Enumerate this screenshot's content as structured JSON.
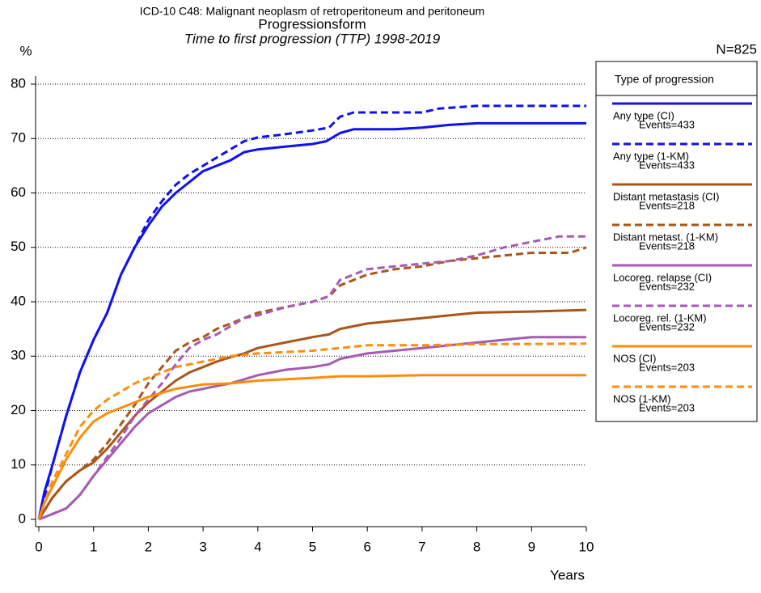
{
  "chart_data": {
    "type": "line",
    "title": "ICD-10 C48: Malignant neoplasm of retroperitoneum and peritoneum",
    "subtitle": "Progressionsform",
    "subtitle2": "Time to first progression (TTP) 1998-2019",
    "y_label": "%",
    "x_label": "Years",
    "n_label": "N=825",
    "legend_title": "Type of progression",
    "xlim": [
      0,
      10
    ],
    "xticks": [
      0,
      1,
      2,
      3,
      4,
      5,
      6,
      7,
      8,
      9,
      10
    ],
    "ylim": [
      0,
      80
    ],
    "yticks": [
      0,
      10,
      20,
      30,
      40,
      50,
      60,
      70,
      80
    ],
    "grid": true,
    "series": [
      {
        "name": "Any type (CI)",
        "events": "Events=433",
        "color": "#1010f0",
        "dashed": false,
        "x": [
          0,
          0.1,
          0.25,
          0.5,
          0.75,
          1,
          1.25,
          1.5,
          1.75,
          2,
          2.25,
          2.5,
          2.75,
          3,
          3.25,
          3.5,
          3.75,
          4,
          4.5,
          5,
          5.25,
          5.5,
          5.75,
          6,
          6.5,
          7,
          7.5,
          8,
          9,
          10
        ],
        "values": [
          0,
          5,
          10,
          19,
          27,
          33,
          38,
          45,
          50,
          54,
          57.5,
          60,
          62,
          64,
          65,
          66,
          67.5,
          68,
          68.5,
          69,
          69.5,
          71,
          71.7,
          71.7,
          71.7,
          72,
          72.5,
          72.8,
          72.8,
          72.8
        ]
      },
      {
        "name": "Any type (1-KM)",
        "events": "Events=433",
        "color": "#1010f0",
        "dashed": true,
        "x": [
          0,
          0.25,
          0.5,
          0.75,
          1,
          1.25,
          1.5,
          1.75,
          2,
          2.25,
          2.5,
          2.75,
          3,
          3.25,
          3.5,
          3.75,
          4,
          4.5,
          5,
          5.3,
          5.5,
          5.75,
          6,
          7,
          7.3,
          8,
          9,
          10
        ],
        "values": [
          0,
          10,
          19,
          27,
          33,
          38,
          45,
          50,
          55,
          58.5,
          61.5,
          63.5,
          65,
          66.5,
          68,
          69.5,
          70.2,
          70.8,
          71.5,
          72,
          74,
          74.8,
          74.8,
          74.8,
          75.5,
          76,
          76,
          76
        ]
      },
      {
        "name": "Distant metastasis (CI)",
        "events": "Events=218",
        "color": "#a8561a",
        "dashed": false,
        "x": [
          0,
          0.25,
          0.5,
          0.75,
          1,
          1.25,
          1.5,
          1.75,
          2,
          2.25,
          2.5,
          2.75,
          3,
          3.25,
          3.5,
          3.75,
          4,
          4.5,
          5,
          5.3,
          5.5,
          6,
          6.5,
          7,
          7.5,
          8,
          9,
          10
        ],
        "values": [
          0,
          4,
          7,
          9,
          10.5,
          13,
          16,
          19,
          21.5,
          23.5,
          25.5,
          27,
          28,
          29,
          29.8,
          30.5,
          31.5,
          32.5,
          33.5,
          34,
          35,
          36,
          36.5,
          37,
          37.5,
          38,
          38.2,
          38.5
        ]
      },
      {
        "name": "Distant metast. (1-KM)",
        "events": "Events=218",
        "color": "#a8561a",
        "dashed": true,
        "x": [
          0,
          0.25,
          0.5,
          0.75,
          1,
          1.25,
          1.5,
          1.75,
          2,
          2.25,
          2.5,
          2.75,
          3,
          3.25,
          3.5,
          3.75,
          4,
          4.5,
          5,
          5.3,
          5.5,
          6,
          6.5,
          7,
          7.5,
          8,
          8.5,
          9,
          9.7,
          10
        ],
        "values": [
          0,
          4,
          7,
          9,
          11,
          14,
          17.5,
          21,
          25,
          28,
          31,
          32.5,
          33.5,
          35,
          36,
          37,
          38,
          39,
          40,
          41,
          43,
          45,
          46,
          46.5,
          47.5,
          48,
          48.5,
          49,
          49,
          50
        ]
      },
      {
        "name": "Locoreg. relapse (CI)",
        "events": "Events=232",
        "color": "#a65bb3",
        "dashed": false,
        "x": [
          0,
          0.25,
          0.5,
          0.75,
          1,
          1.25,
          1.5,
          1.75,
          2,
          2.25,
          2.5,
          2.75,
          3,
          3.5,
          4,
          4.5,
          5,
          5.3,
          5.5,
          6,
          6.5,
          7,
          7.5,
          8,
          9,
          10
        ],
        "values": [
          0,
          1,
          2,
          4.5,
          8,
          11,
          14,
          17,
          19.5,
          21,
          22.5,
          23.5,
          24,
          25,
          26.5,
          27.5,
          28,
          28.5,
          29.5,
          30.5,
          31,
          31.5,
          32,
          32.5,
          33.5,
          33.5
        ]
      },
      {
        "name": "Locoreg. rel. (1-KM)",
        "events": "Events=232",
        "color": "#a65bb3",
        "dashed": true,
        "x": [
          0,
          0.25,
          0.5,
          0.75,
          1,
          1.25,
          1.5,
          1.75,
          2,
          2.25,
          2.5,
          2.75,
          3,
          3.25,
          3.5,
          3.75,
          4,
          4.5,
          5,
          5.3,
          5.5,
          6,
          6.5,
          7,
          7.5,
          8,
          8.5,
          9,
          9.5,
          10
        ],
        "values": [
          0,
          1,
          2,
          4.5,
          8,
          11.5,
          15,
          19,
          22,
          25,
          28.5,
          31.5,
          33,
          34,
          35.5,
          37,
          37.5,
          39,
          40,
          41,
          44,
          46,
          46.5,
          47,
          47.5,
          48.5,
          50,
          51,
          52,
          52
        ]
      },
      {
        "name": "NOS (CI)",
        "events": "Events=203",
        "color": "#ff8c0a",
        "dashed": false,
        "x": [
          0,
          0.1,
          0.25,
          0.5,
          0.75,
          1,
          1.25,
          1.5,
          1.75,
          2,
          2.5,
          3,
          3.5,
          4,
          5,
          5.5,
          6,
          7,
          8,
          10
        ],
        "values": [
          0,
          3,
          6,
          11,
          15,
          18,
          19.5,
          20.5,
          21.5,
          22.5,
          24,
          24.8,
          25,
          25.5,
          26,
          26.3,
          26.3,
          26.5,
          26.5,
          26.5
        ]
      },
      {
        "name": "NOS (1-KM)",
        "events": "Events=203",
        "color": "#ff8c0a",
        "dashed": true,
        "x": [
          0,
          0.1,
          0.25,
          0.5,
          0.75,
          1,
          1.25,
          1.5,
          1.75,
          2,
          2.25,
          2.5,
          3,
          3.5,
          4,
          5,
          5.5,
          6,
          7,
          8,
          10
        ],
        "values": [
          0,
          3,
          7,
          12,
          17,
          20,
          22,
          23.5,
          25,
          26,
          27,
          28,
          29,
          30,
          30.5,
          31,
          31.5,
          32,
          32,
          32.2,
          32.3
        ]
      }
    ]
  }
}
